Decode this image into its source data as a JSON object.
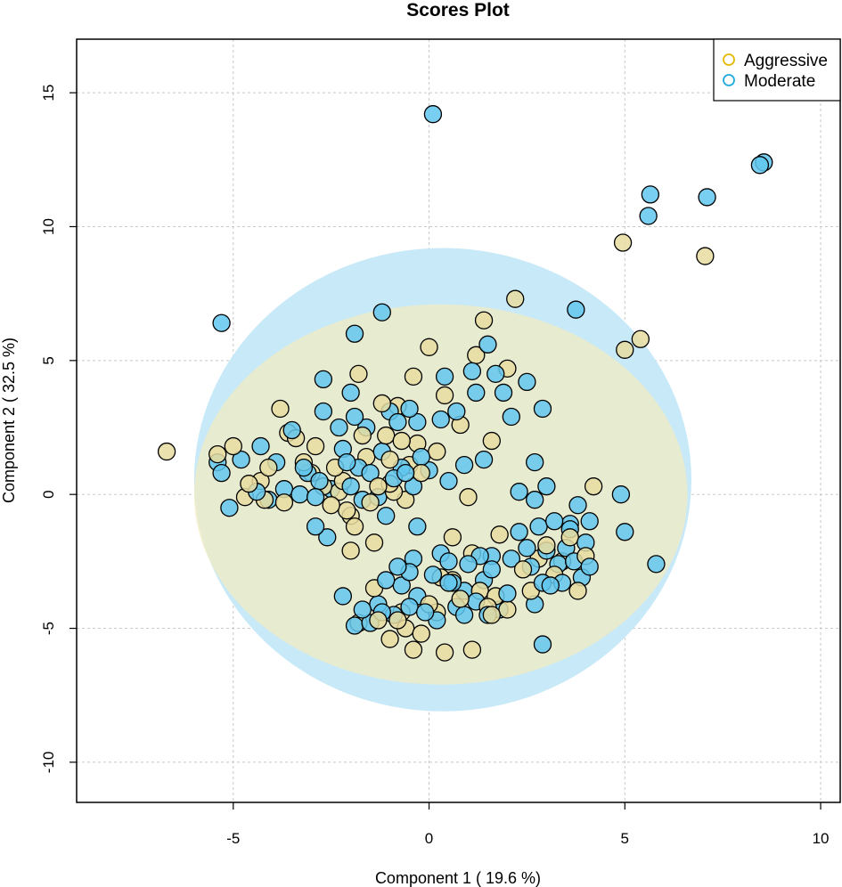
{
  "chart_data": {
    "type": "scatter",
    "title": "Scores Plot",
    "xlabel": "Component 1 ( 19.6 %)",
    "ylabel": "Component 2 ( 32.5 %)",
    "xlim": [
      -9,
      10.5
    ],
    "ylim": [
      -11.5,
      17
    ],
    "xticks": [
      -5,
      0,
      5,
      10
    ],
    "yticks": [
      -10,
      -5,
      0,
      5,
      10,
      15
    ],
    "grid": true,
    "legend_position": "top-right",
    "series": [
      {
        "name": "Aggressive",
        "color": "#E6B800",
        "fill": "#E8DCA0",
        "ellipse": {
          "cx": 0.3,
          "cy": 0.0,
          "rx": 6.3,
          "ry": 7.1,
          "color": "#F2EBC3"
        },
        "points": [
          [
            -6.7,
            1.6
          ],
          [
            -5.4,
            1.5
          ],
          [
            -5.0,
            1.8
          ],
          [
            -4.6,
            0.4
          ],
          [
            -4.7,
            -0.1
          ],
          [
            -4.3,
            0.5
          ],
          [
            -4.1,
            1.0
          ],
          [
            -3.8,
            3.2
          ],
          [
            -3.6,
            2.3
          ],
          [
            -3.4,
            2.1
          ],
          [
            -3.2,
            1.2
          ],
          [
            -3.0,
            0.8
          ],
          [
            -2.9,
            1.8
          ],
          [
            -2.7,
            0.3
          ],
          [
            -2.5,
            -0.4
          ],
          [
            -2.4,
            1.0
          ],
          [
            -2.2,
            0.5
          ],
          [
            -2.1,
            -0.6
          ],
          [
            -2.0,
            -2.1
          ],
          [
            -1.9,
            -1.2
          ],
          [
            -1.8,
            4.5
          ],
          [
            -1.7,
            2.2
          ],
          [
            -1.6,
            1.4
          ],
          [
            -1.5,
            -0.3
          ],
          [
            -1.4,
            -1.8
          ],
          [
            -1.3,
            0.3
          ],
          [
            -1.2,
            3.4
          ],
          [
            -1.1,
            2.2
          ],
          [
            -1.0,
            1.3
          ],
          [
            -0.9,
            0.1
          ],
          [
            -0.8,
            3.3
          ],
          [
            -0.7,
            2.0
          ],
          [
            -0.6,
            -0.2
          ],
          [
            -0.5,
            1.1
          ],
          [
            -0.4,
            4.4
          ],
          [
            -0.3,
            1.9
          ],
          [
            -0.2,
            0.8
          ],
          [
            0.0,
            5.5
          ],
          [
            0.2,
            1.6
          ],
          [
            0.4,
            3.7
          ],
          [
            0.6,
            -1.6
          ],
          [
            0.8,
            2.6
          ],
          [
            1.0,
            -0.1
          ],
          [
            1.1,
            -2.2
          ],
          [
            1.2,
            5.2
          ],
          [
            1.4,
            6.5
          ],
          [
            1.6,
            2.0
          ],
          [
            1.8,
            -1.5
          ],
          [
            2.0,
            4.7
          ],
          [
            2.2,
            7.3
          ],
          [
            2.4,
            -2.8
          ],
          [
            2.6,
            -3.6
          ],
          [
            2.8,
            -2.4
          ],
          [
            3.0,
            -1.9
          ],
          [
            3.2,
            -3.0
          ],
          [
            3.4,
            -2.5
          ],
          [
            3.6,
            -1.6
          ],
          [
            3.8,
            -3.6
          ],
          [
            4.0,
            -2.3
          ],
          [
            4.2,
            0.3
          ],
          [
            -1.0,
            -5.4
          ],
          [
            -0.8,
            -4.7
          ],
          [
            -0.6,
            -5.0
          ],
          [
            -0.4,
            -5.8
          ],
          [
            -0.2,
            -5.2
          ],
          [
            0.0,
            -4.1
          ],
          [
            0.2,
            -4.4
          ],
          [
            0.4,
            -5.9
          ],
          [
            0.6,
            -3.2
          ],
          [
            0.8,
            -3.9
          ],
          [
            1.1,
            -5.8
          ],
          [
            1.3,
            -3.6
          ],
          [
            1.5,
            -4.2
          ],
          [
            1.7,
            -3.8
          ],
          [
            -1.8,
            -4.8
          ],
          [
            -1.4,
            -3.5
          ],
          [
            4.95,
            9.4
          ],
          [
            5.0,
            5.4
          ],
          [
            5.4,
            5.8
          ],
          [
            7.05,
            8.9
          ],
          [
            1.6,
            -4.5
          ],
          [
            2.0,
            -4.3
          ],
          [
            -0.7,
            -4.4
          ],
          [
            -1.3,
            -4.7
          ],
          [
            0.3,
            -3.1
          ],
          [
            -2.3,
            0.1
          ],
          [
            -3.7,
            -0.3
          ],
          [
            -4.2,
            -0.2
          ],
          [
            -2.0,
            -0.8
          ],
          [
            -1.0,
            0.4
          ]
        ]
      },
      {
        "name": "Moderate",
        "color": "#1EA9E0",
        "fill": "#62C7EE",
        "ellipse": {
          "cx": 0.35,
          "cy": 0.55,
          "rx": 6.35,
          "ry": 8.65,
          "color": "#C8E9F8"
        },
        "points": [
          [
            0.1,
            14.2
          ],
          [
            5.65,
            11.2
          ],
          [
            5.6,
            10.4
          ],
          [
            7.1,
            11.1
          ],
          [
            8.45,
            12.3
          ],
          [
            8.55,
            12.4
          ],
          [
            3.75,
            6.9
          ],
          [
            -5.3,
            6.4
          ],
          [
            -1.9,
            6.0
          ],
          [
            -1.2,
            6.8
          ],
          [
            5.8,
            -2.6
          ],
          [
            4.9,
            -0.0
          ],
          [
            5.0,
            -1.4
          ],
          [
            2.9,
            -5.6
          ],
          [
            -5.4,
            1.2
          ],
          [
            -5.3,
            0.8
          ],
          [
            -5.1,
            -0.5
          ],
          [
            -4.8,
            1.3
          ],
          [
            -4.4,
            0.1
          ],
          [
            -4.3,
            1.8
          ],
          [
            -4.1,
            -0.2
          ],
          [
            -3.9,
            1.2
          ],
          [
            -3.7,
            0.2
          ],
          [
            -3.5,
            2.4
          ],
          [
            -3.3,
            0.0
          ],
          [
            -3.1,
            0.8
          ],
          [
            -2.9,
            -1.2
          ],
          [
            -2.8,
            0.5
          ],
          [
            -2.7,
            4.3
          ],
          [
            -2.7,
            3.1
          ],
          [
            -2.6,
            -1.6
          ],
          [
            -2.5,
            0.2
          ],
          [
            -2.3,
            2.5
          ],
          [
            -2.2,
            1.7
          ],
          [
            -2.1,
            1.2
          ],
          [
            -2.0,
            3.8
          ],
          [
            -2.0,
            0.3
          ],
          [
            -1.9,
            2.9
          ],
          [
            -1.8,
            1.0
          ],
          [
            -1.6,
            2.5
          ],
          [
            -1.5,
            0.8
          ],
          [
            -1.3,
            -0.1
          ],
          [
            -1.2,
            1.6
          ],
          [
            -1.1,
            -0.8
          ],
          [
            -1.0,
            3.1
          ],
          [
            -0.9,
            0.6
          ],
          [
            -0.8,
            2.7
          ],
          [
            -0.7,
            1.0
          ],
          [
            -0.5,
            3.2
          ],
          [
            -0.4,
            0.3
          ],
          [
            -0.3,
            2.7
          ],
          [
            -0.2,
            1.4
          ],
          [
            0.0,
            0.9
          ],
          [
            0.3,
            2.8
          ],
          [
            0.4,
            4.4
          ],
          [
            0.5,
            0.5
          ],
          [
            0.7,
            3.1
          ],
          [
            0.9,
            1.1
          ],
          [
            1.1,
            4.6
          ],
          [
            1.2,
            3.8
          ],
          [
            1.4,
            1.3
          ],
          [
            1.5,
            5.6
          ],
          [
            1.7,
            4.5
          ],
          [
            1.9,
            3.8
          ],
          [
            2.1,
            2.9
          ],
          [
            2.3,
            0.1
          ],
          [
            2.5,
            4.2
          ],
          [
            2.7,
            -0.2
          ],
          [
            2.7,
            1.2
          ],
          [
            2.9,
            3.2
          ],
          [
            3.0,
            0.3
          ],
          [
            2.3,
            -1.4
          ],
          [
            2.5,
            -2.0
          ],
          [
            2.6,
            -2.7
          ],
          [
            2.7,
            -4.1
          ],
          [
            2.8,
            -1.2
          ],
          [
            2.9,
            -3.3
          ],
          [
            3.0,
            -2.1
          ],
          [
            3.1,
            -3.4
          ],
          [
            3.2,
            -1.0
          ],
          [
            3.3,
            -2.6
          ],
          [
            3.4,
            -3.3
          ],
          [
            3.5,
            -2.0
          ],
          [
            3.6,
            -1.3
          ],
          [
            3.7,
            -2.5
          ],
          [
            3.8,
            -0.4
          ],
          [
            3.9,
            -3.1
          ],
          [
            4.0,
            -1.8
          ],
          [
            4.1,
            -1.0
          ],
          [
            4.1,
            -2.7
          ],
          [
            -2.2,
            -3.8
          ],
          [
            -1.9,
            -4.9
          ],
          [
            -1.7,
            -4.3
          ],
          [
            -1.5,
            -4.8
          ],
          [
            -1.3,
            -4.1
          ],
          [
            -1.1,
            -3.2
          ],
          [
            -0.9,
            -4.5
          ],
          [
            -0.7,
            -3.4
          ],
          [
            -0.5,
            -2.9
          ],
          [
            -0.3,
            -3.8
          ],
          [
            -0.1,
            -4.4
          ],
          [
            0.1,
            -3.0
          ],
          [
            0.3,
            -2.2
          ],
          [
            0.5,
            -3.3
          ],
          [
            0.7,
            -4.2
          ],
          [
            0.9,
            -3.6
          ],
          [
            1.0,
            -2.6
          ],
          [
            1.2,
            -4.0
          ],
          [
            1.4,
            -3.2
          ],
          [
            1.6,
            -2.8
          ],
          [
            1.8,
            -4.3
          ],
          [
            2.0,
            -3.7
          ],
          [
            0.6,
            -3.3
          ],
          [
            -0.4,
            -2.4
          ],
          [
            1.5,
            -4.5
          ],
          [
            -1.2,
            -4.4
          ],
          [
            -0.3,
            -1.2
          ],
          [
            0.9,
            -4.5
          ],
          [
            2.1,
            -2.4
          ],
          [
            3.6,
            -1.1
          ],
          [
            -2.9,
            -0.1
          ],
          [
            -1.7,
            -0.2
          ],
          [
            -0.6,
            0.8
          ],
          [
            -3.2,
            1.0
          ],
          [
            0.2,
            -4.7
          ],
          [
            -0.8,
            -2.7
          ],
          [
            1.3,
            -2.3
          ],
          [
            1.6,
            -2.3
          ],
          [
            -0.5,
            -4.2
          ],
          [
            0.5,
            -2.5
          ]
        ]
      }
    ]
  }
}
